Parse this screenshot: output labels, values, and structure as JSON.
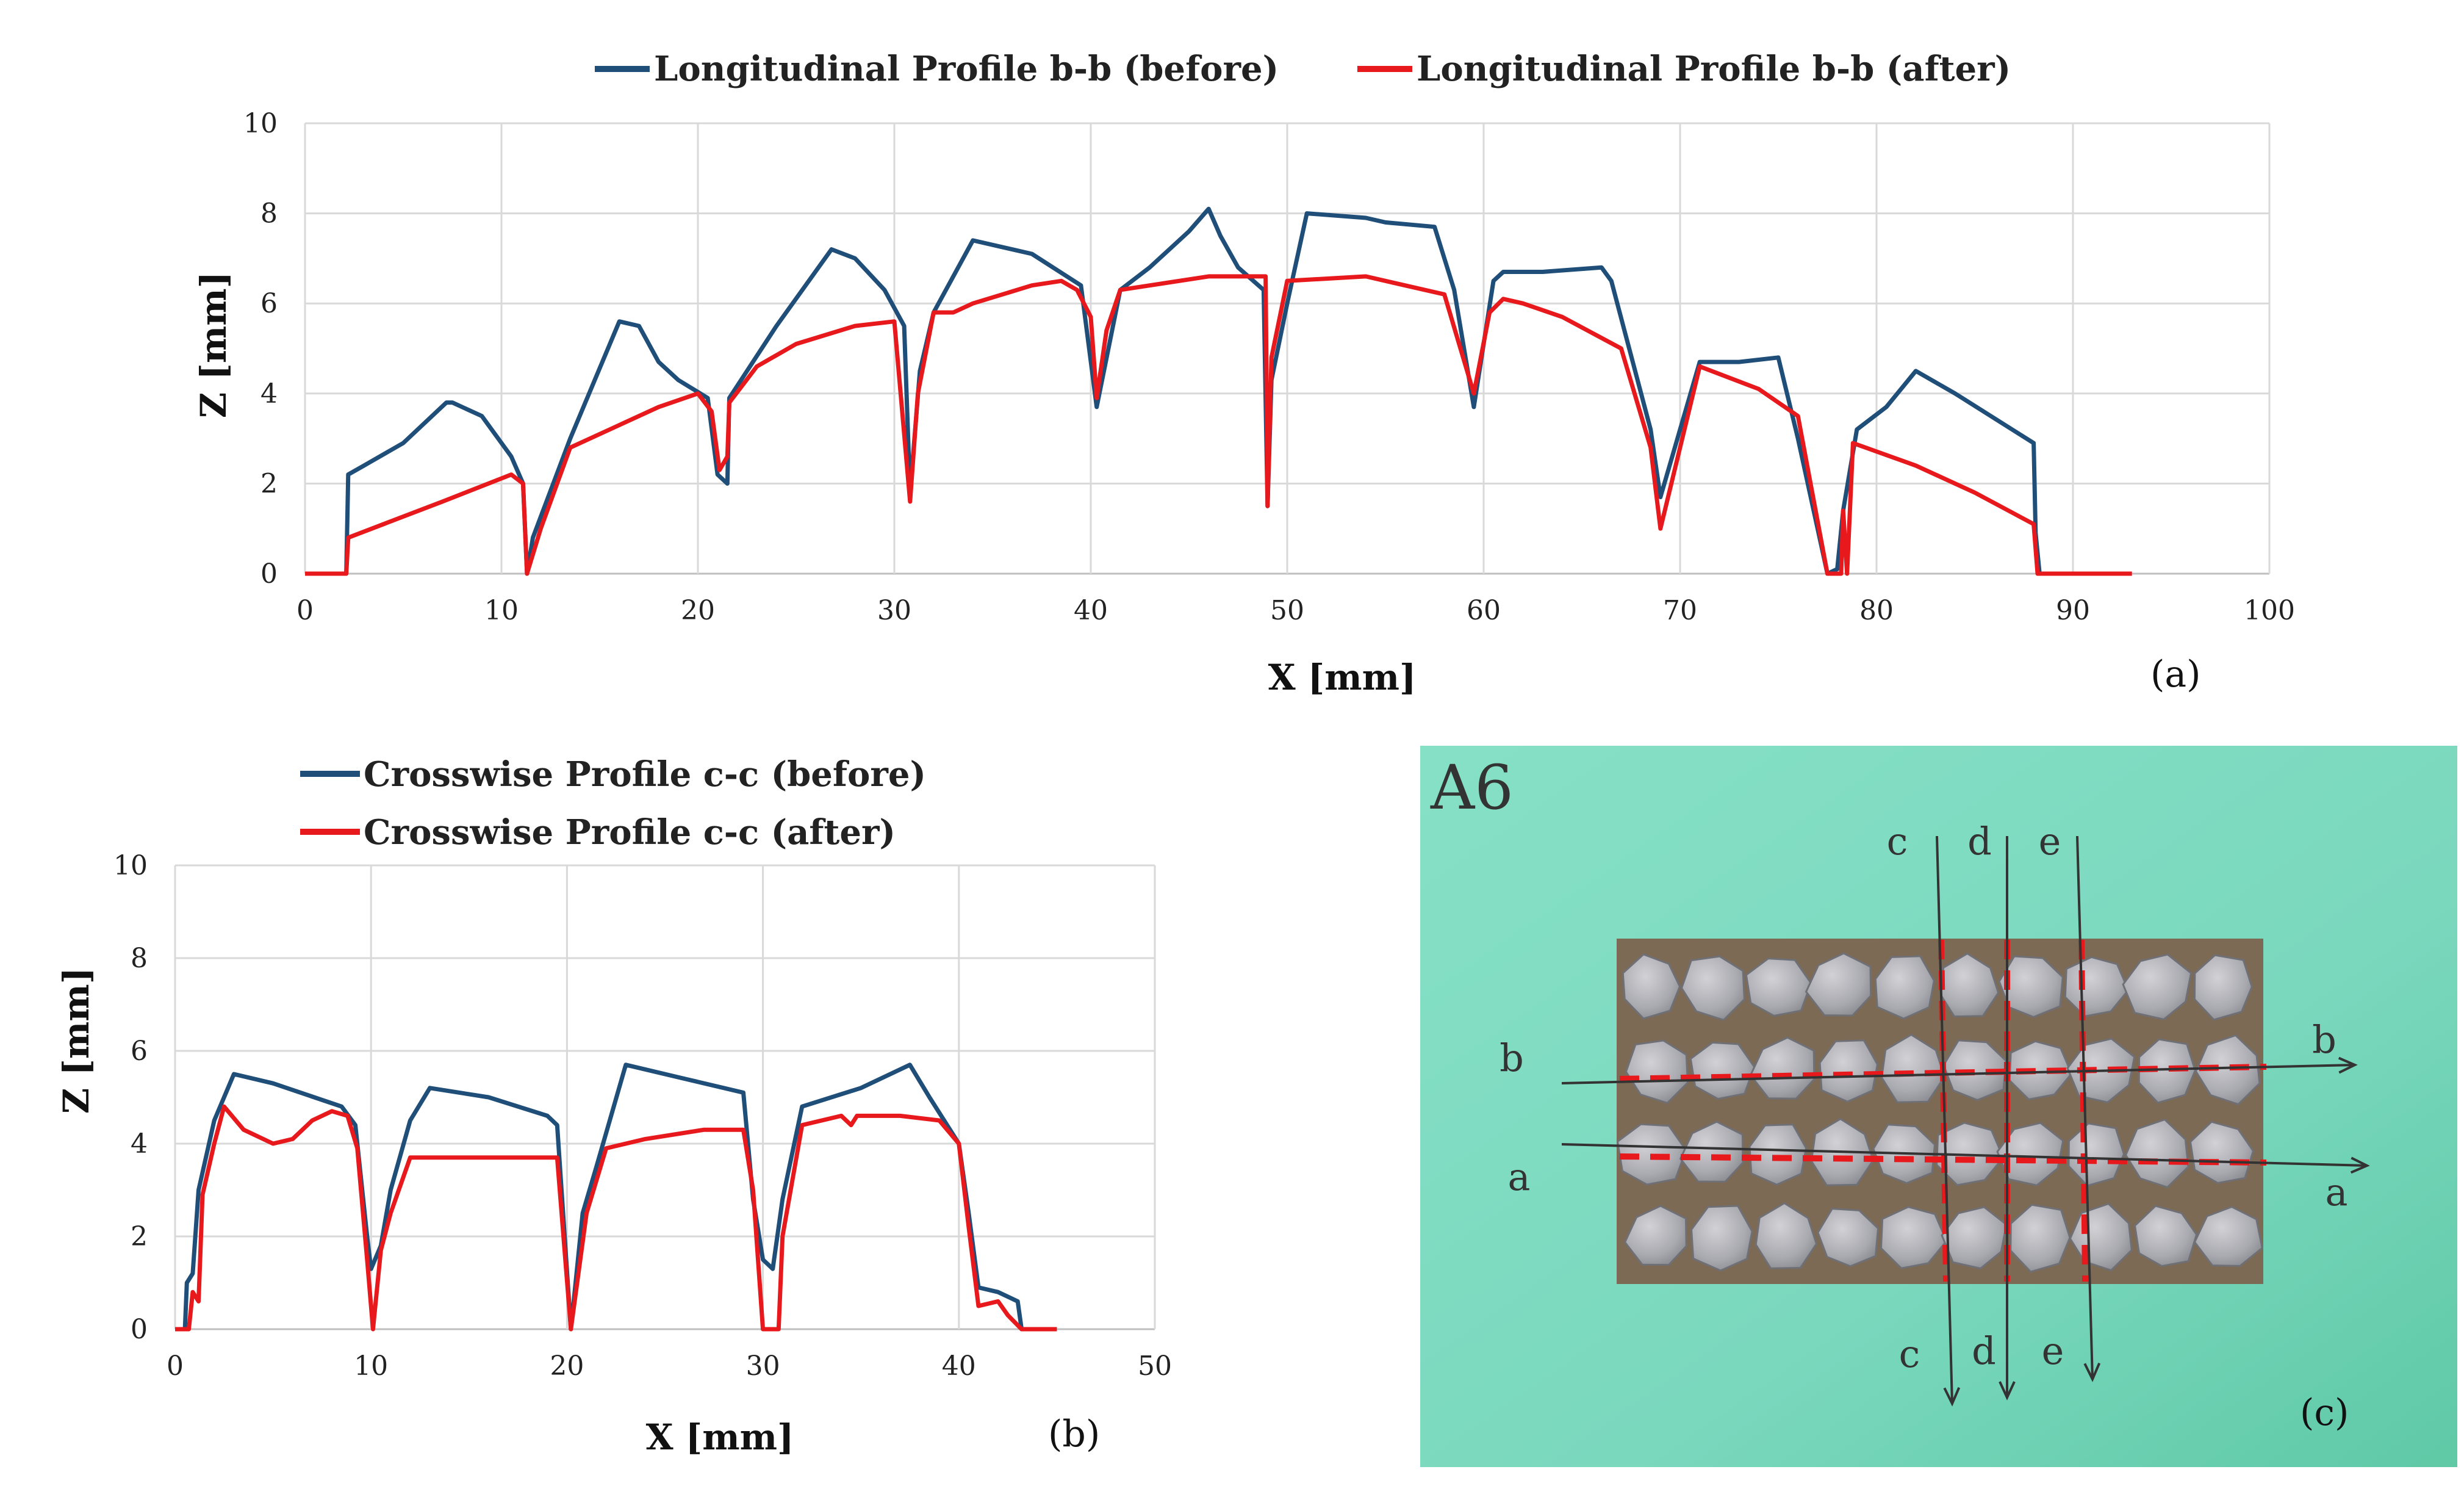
{
  "chart_data": [
    {
      "type": "line",
      "panel_label": "(a)",
      "xlabel": "X [mm]",
      "ylabel": "Z [mm]",
      "xlim": [
        0,
        100
      ],
      "ylim": [
        0,
        10
      ],
      "xticks": [
        "0",
        "10",
        "20",
        "30",
        "40",
        "50",
        "60",
        "70",
        "80",
        "90",
        "100"
      ],
      "yticks": [
        "0",
        "2",
        "4",
        "6",
        "8",
        "10"
      ],
      "grid": true,
      "legend_placement": "top",
      "series": [
        {
          "name": "Longitudinal Profile b-b (before)",
          "color": "#1f4e79",
          "points": [
            [
              0,
              0
            ],
            [
              2.1,
              0
            ],
            [
              2.2,
              2.2
            ],
            [
              3,
              2.4
            ],
            [
              5,
              2.9
            ],
            [
              7.2,
              3.8
            ],
            [
              7.5,
              3.8
            ],
            [
              9,
              3.5
            ],
            [
              10.5,
              2.6
            ],
            [
              11.1,
              2.0
            ],
            [
              11.3,
              0
            ],
            [
              11.6,
              0.8
            ],
            [
              13.5,
              3.0
            ],
            [
              16,
              5.6
            ],
            [
              17,
              5.5
            ],
            [
              18,
              4.7
            ],
            [
              19,
              4.3
            ],
            [
              20.5,
              3.9
            ],
            [
              21,
              2.2
            ],
            [
              21.5,
              2.0
            ],
            [
              21.6,
              3.9
            ],
            [
              24,
              5.5
            ],
            [
              26.8,
              7.2
            ],
            [
              28,
              7.0
            ],
            [
              29.5,
              6.3
            ],
            [
              30.5,
              5.5
            ],
            [
              30.8,
              1.8
            ],
            [
              31.3,
              4.5
            ],
            [
              32,
              5.8
            ],
            [
              34,
              7.4
            ],
            [
              37,
              7.1
            ],
            [
              39.5,
              6.4
            ],
            [
              40.3,
              3.7
            ],
            [
              41.5,
              6.3
            ],
            [
              43,
              6.8
            ],
            [
              45,
              7.6
            ],
            [
              46,
              8.1
            ],
            [
              46.6,
              7.5
            ],
            [
              47.5,
              6.8
            ],
            [
              48.8,
              6.3
            ],
            [
              49,
              1.5
            ],
            [
              49.2,
              4.3
            ],
            [
              50,
              6.0
            ],
            [
              51,
              8.0
            ],
            [
              54,
              7.9
            ],
            [
              55,
              7.8
            ],
            [
              57.5,
              7.7
            ],
            [
              58.5,
              6.3
            ],
            [
              59.5,
              3.7
            ],
            [
              60.5,
              6.5
            ],
            [
              61,
              6.7
            ],
            [
              63,
              6.7
            ],
            [
              66,
              6.8
            ],
            [
              66.5,
              6.5
            ],
            [
              68.5,
              3.2
            ],
            [
              69,
              1.7
            ],
            [
              71,
              4.7
            ],
            [
              73,
              4.7
            ],
            [
              75,
              4.8
            ],
            [
              76,
              3.0
            ],
            [
              77.5,
              0
            ],
            [
              78,
              0.1
            ],
            [
              78.3,
              1.4
            ],
            [
              79,
              3.2
            ],
            [
              80.5,
              3.7
            ],
            [
              82,
              4.5
            ],
            [
              84,
              4.0
            ],
            [
              88,
              2.9
            ],
            [
              88.1,
              0.9
            ],
            [
              88.3,
              0
            ],
            [
              93,
              0
            ]
          ]
        },
        {
          "name": "Longitudinal Profile b-b (after)",
          "color": "#e8191c",
          "points": [
            [
              0,
              0
            ],
            [
              2.1,
              0
            ],
            [
              2.2,
              0.8
            ],
            [
              4,
              1.1
            ],
            [
              7,
              1.6
            ],
            [
              10.5,
              2.2
            ],
            [
              11.1,
              2.0
            ],
            [
              11.3,
              0
            ],
            [
              12,
              1.0
            ],
            [
              13.5,
              2.8
            ],
            [
              16,
              3.3
            ],
            [
              18,
              3.7
            ],
            [
              20,
              4.0
            ],
            [
              20.7,
              3.6
            ],
            [
              21.1,
              2.3
            ],
            [
              21.5,
              2.6
            ],
            [
              21.6,
              3.8
            ],
            [
              23,
              4.6
            ],
            [
              25,
              5.1
            ],
            [
              28,
              5.5
            ],
            [
              30,
              5.6
            ],
            [
              30.8,
              1.6
            ],
            [
              31.2,
              4.0
            ],
            [
              32,
              5.8
            ],
            [
              33,
              5.8
            ],
            [
              34,
              6.0
            ],
            [
              37,
              6.4
            ],
            [
              38.5,
              6.5
            ],
            [
              39.3,
              6.3
            ],
            [
              40,
              5.7
            ],
            [
              40.3,
              3.9
            ],
            [
              40.8,
              5.4
            ],
            [
              41.5,
              6.3
            ],
            [
              43,
              6.4
            ],
            [
              46,
              6.6
            ],
            [
              48.5,
              6.6
            ],
            [
              48.9,
              6.6
            ],
            [
              49,
              1.5
            ],
            [
              49.2,
              4.8
            ],
            [
              50,
              6.5
            ],
            [
              54,
              6.6
            ],
            [
              56,
              6.4
            ],
            [
              58,
              6.2
            ],
            [
              59.5,
              4.0
            ],
            [
              60.3,
              5.8
            ],
            [
              61,
              6.1
            ],
            [
              62,
              6.0
            ],
            [
              64,
              5.7
            ],
            [
              67,
              5.0
            ],
            [
              68.5,
              2.8
            ],
            [
              69,
              1.0
            ],
            [
              71,
              4.6
            ],
            [
              74,
              4.1
            ],
            [
              76,
              3.5
            ],
            [
              77.5,
              0
            ],
            [
              78.2,
              0
            ],
            [
              78.3,
              1.4
            ],
            [
              78.5,
              0
            ],
            [
              78.8,
              2.9
            ],
            [
              82,
              2.4
            ],
            [
              85,
              1.8
            ],
            [
              88,
              1.1
            ],
            [
              88.2,
              0
            ],
            [
              93,
              0
            ]
          ]
        }
      ]
    },
    {
      "type": "line",
      "panel_label": "(b)",
      "xlabel": "X [mm]",
      "ylabel": "Z [mm]",
      "xlim": [
        0,
        50
      ],
      "ylim": [
        0,
        10
      ],
      "xticks": [
        "0",
        "10",
        "20",
        "30",
        "40",
        "50"
      ],
      "yticks": [
        "0",
        "2",
        "4",
        "6",
        "8",
        "10"
      ],
      "grid": true,
      "legend_placement": "top-left",
      "series": [
        {
          "name": "Crosswise Profile c-c (before)",
          "color": "#1f4e79",
          "points": [
            [
              0,
              0
            ],
            [
              0.5,
              0
            ],
            [
              0.6,
              1.0
            ],
            [
              0.9,
              1.2
            ],
            [
              1.2,
              3.0
            ],
            [
              2,
              4.5
            ],
            [
              3,
              5.5
            ],
            [
              5,
              5.3
            ],
            [
              8.5,
              4.8
            ],
            [
              9.2,
              4.4
            ],
            [
              9.8,
              2.0
            ],
            [
              10,
              1.3
            ],
            [
              10.5,
              1.8
            ],
            [
              11,
              3.0
            ],
            [
              12,
              4.5
            ],
            [
              13,
              5.2
            ],
            [
              16,
              5.0
            ],
            [
              19,
              4.6
            ],
            [
              19.5,
              4.4
            ],
            [
              20.2,
              0
            ],
            [
              20.8,
              2.5
            ],
            [
              21.5,
              3.5
            ],
            [
              23,
              5.7
            ],
            [
              26,
              5.4
            ],
            [
              29,
              5.1
            ],
            [
              29.5,
              2.8
            ],
            [
              30,
              1.5
            ],
            [
              30.5,
              1.3
            ],
            [
              31,
              2.8
            ],
            [
              32,
              4.8
            ],
            [
              35,
              5.2
            ],
            [
              37.5,
              5.7
            ],
            [
              38.5,
              5.0
            ],
            [
              40,
              4.0
            ],
            [
              40.5,
              2.5
            ],
            [
              41,
              0.9
            ],
            [
              42,
              0.8
            ],
            [
              43,
              0.6
            ],
            [
              43.2,
              0
            ],
            [
              45,
              0
            ]
          ]
        },
        {
          "name": "Crosswise Profile c-c (after)",
          "color": "#e8191c",
          "points": [
            [
              0,
              0
            ],
            [
              0.7,
              0
            ],
            [
              0.9,
              0.8
            ],
            [
              1.2,
              0.6
            ],
            [
              1.4,
              2.9
            ],
            [
              2,
              4.0
            ],
            [
              2.5,
              4.8
            ],
            [
              3.5,
              4.3
            ],
            [
              5,
              4.0
            ],
            [
              6,
              4.1
            ],
            [
              7,
              4.5
            ],
            [
              8,
              4.7
            ],
            [
              8.8,
              4.6
            ],
            [
              9.3,
              3.9
            ],
            [
              9.8,
              1.5
            ],
            [
              10.1,
              0
            ],
            [
              10.5,
              1.7
            ],
            [
              11,
              2.5
            ],
            [
              12,
              3.7
            ],
            [
              15,
              3.7
            ],
            [
              18,
              3.7
            ],
            [
              19.5,
              3.7
            ],
            [
              20.2,
              0
            ],
            [
              21,
              2.5
            ],
            [
              22,
              3.9
            ],
            [
              24,
              4.1
            ],
            [
              27,
              4.3
            ],
            [
              29,
              4.3
            ],
            [
              29.5,
              3.0
            ],
            [
              30,
              0
            ],
            [
              30.8,
              0
            ],
            [
              31,
              2.0
            ],
            [
              32,
              4.4
            ],
            [
              34,
              4.6
            ],
            [
              34.5,
              4.4
            ],
            [
              34.8,
              4.6
            ],
            [
              37,
              4.6
            ],
            [
              39,
              4.5
            ],
            [
              40,
              4.0
            ],
            [
              40.5,
              2.2
            ],
            [
              41,
              0.5
            ],
            [
              42,
              0.6
            ],
            [
              42.5,
              0.3
            ],
            [
              43.2,
              0
            ],
            [
              45,
              0
            ]
          ]
        }
      ]
    }
  ],
  "photo": {
    "panel_label": "(c)",
    "specimen_label": "A6",
    "section_letters_top": [
      "c",
      "d",
      "e"
    ],
    "section_letters_bottom": [
      "c",
      "d",
      "e"
    ],
    "section_letters_left": [
      "b",
      "a"
    ],
    "section_letters_right": [
      "b",
      "a"
    ],
    "background_color": "#7fdcc0",
    "dashed_line_color": "#e8191c"
  }
}
